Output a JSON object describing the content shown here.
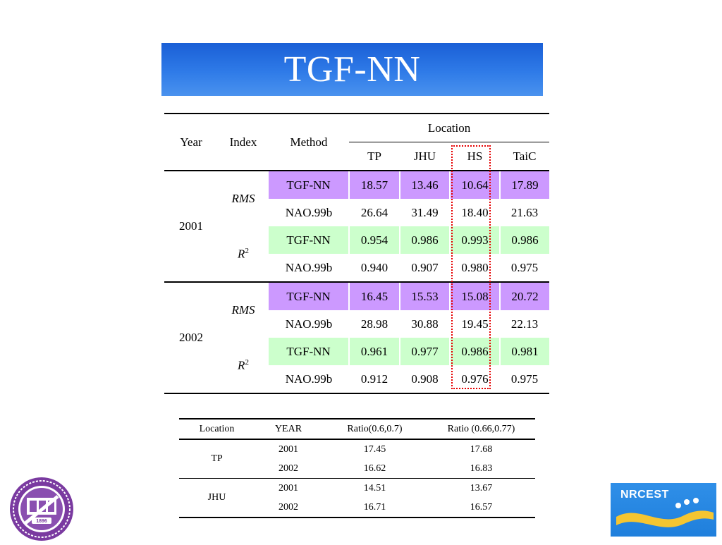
{
  "title": "TGF-NN",
  "main_table": {
    "headers": {
      "year": "Year",
      "index": "Index",
      "method": "Method",
      "location": "Location",
      "locations": [
        "TP",
        "JHU",
        "HS",
        "TaiC"
      ]
    },
    "groups": [
      {
        "year": "2001",
        "blocks": [
          {
            "index": "RMS",
            "rows": [
              {
                "method": "TGF-NN",
                "values": [
                  "18.57",
                  "13.46",
                  "10.64",
                  "17.89"
                ]
              },
              {
                "method": "NAO.99b",
                "values": [
                  "26.64",
                  "31.49",
                  "18.40",
                  "21.63"
                ]
              }
            ]
          },
          {
            "index": "R",
            "index_sup": "2",
            "rows": [
              {
                "method": "TGF-NN",
                "values": [
                  "0.954",
                  "0.986",
                  "0.993",
                  "0.986"
                ]
              },
              {
                "method": "NAO.99b",
                "values": [
                  "0.940",
                  "0.907",
                  "0.980",
                  "0.975"
                ]
              }
            ]
          }
        ]
      },
      {
        "year": "2002",
        "blocks": [
          {
            "index": "RMS",
            "rows": [
              {
                "method": "TGF-NN",
                "values": [
                  "16.45",
                  "15.53",
                  "15.08",
                  "20.72"
                ]
              },
              {
                "method": "NAO.99b",
                "values": [
                  "28.98",
                  "30.88",
                  "19.45",
                  "22.13"
                ]
              }
            ]
          },
          {
            "index": "R",
            "index_sup": "2",
            "rows": [
              {
                "method": "TGF-NN",
                "values": [
                  "0.961",
                  "0.977",
                  "0.986",
                  "0.981"
                ]
              },
              {
                "method": "NAO.99b",
                "values": [
                  "0.912",
                  "0.908",
                  "0.976",
                  "0.975"
                ]
              }
            ]
          }
        ]
      }
    ]
  },
  "ratio_table": {
    "headers": [
      "Location",
      "YEAR",
      "Ratio(0.6,0.7)",
      "Ratio (0.66,0.77)"
    ],
    "groups": [
      {
        "location": "TP",
        "rows": [
          {
            "year": "2001",
            "r1": "17.45",
            "r2": "17.68"
          },
          {
            "year": "2002",
            "r1": "16.62",
            "r2": "16.83"
          }
        ]
      },
      {
        "location": "JHU",
        "rows": [
          {
            "year": "2001",
            "r1": "14.51",
            "r2": "13.67"
          },
          {
            "year": "2002",
            "r1": "16.71",
            "r2": "16.57"
          }
        ]
      }
    ]
  },
  "logos": {
    "left_icon": "university-seal-icon",
    "left_year": "1896",
    "right_text": "NRCEST"
  },
  "colors": {
    "tgf_rms_row": "#cc99ff",
    "tgf_r2_row": "#ccffcc",
    "highlight_box": "#e60000",
    "banner": "#2f7be8"
  }
}
